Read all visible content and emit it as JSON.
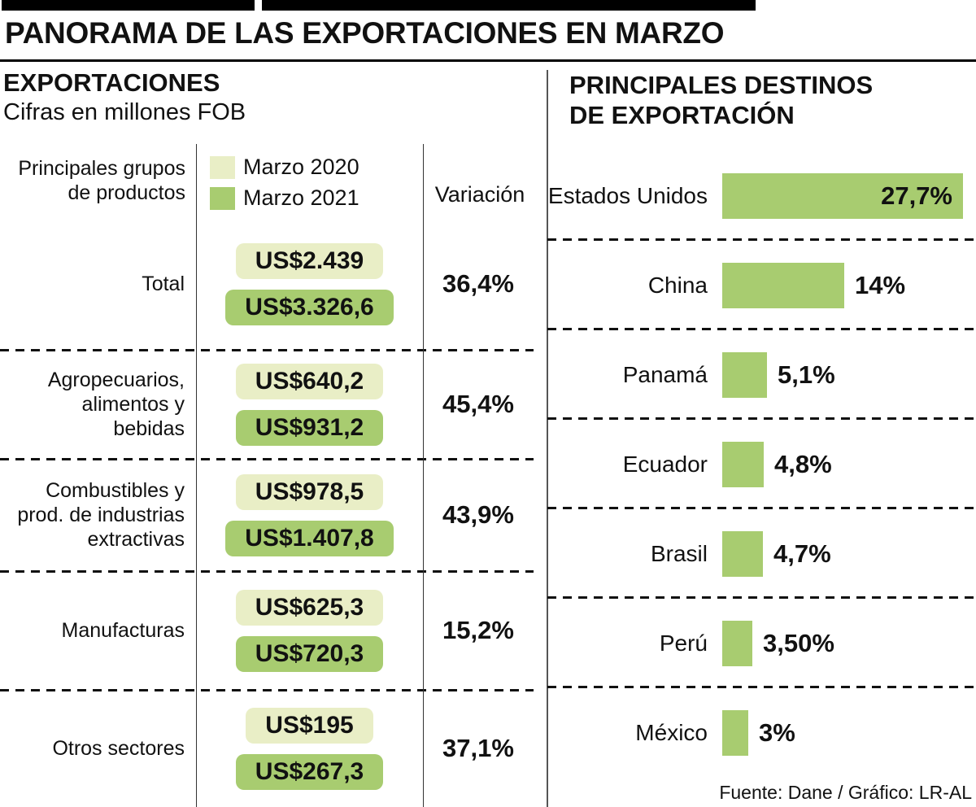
{
  "title": "PANORAMA DE LAS EXPORTACIONES EN MARZO",
  "colors": {
    "marzo_2020": "#e9eec6",
    "marzo_2021": "#a8cc70",
    "destination_bar": "#a8cc70"
  },
  "left": {
    "heading": "EXPORTACIONES",
    "subheading": "Cifras en millones FOB",
    "products_header": "Principales grupos\nde productos",
    "variation_header": "Variación",
    "legend": [
      {
        "label": "Marzo 2020"
      },
      {
        "label": "Marzo 2021"
      }
    ],
    "rows": [
      {
        "category": "Total",
        "marzo_2020": "US$2.439",
        "marzo_2021": "US$3.326,6",
        "variation": "36,4%"
      },
      {
        "category": "Agropecuarios,\nalimentos y\nbebidas",
        "marzo_2020": "US$640,2",
        "marzo_2021": "US$931,2",
        "variation": "45,4%"
      },
      {
        "category": "Combustibles y\nprod. de industrias\nextractivas",
        "marzo_2020": "US$978,5",
        "marzo_2021": "US$1.407,8",
        "variation": "43,9%"
      },
      {
        "category": "Manufacturas",
        "marzo_2020": "US$625,3",
        "marzo_2021": "US$720,3",
        "variation": "15,2%"
      },
      {
        "category": "Otros sectores",
        "marzo_2020": "US$195",
        "marzo_2021": "US$267,3",
        "variation": "37,1%"
      }
    ]
  },
  "right": {
    "heading": "PRINCIPALES DESTINOS\nDE EXPORTACIÓN",
    "bars": [
      {
        "label": "Estados Unidos",
        "value": 27.7,
        "display": "27,7%"
      },
      {
        "label": "China",
        "value": 14,
        "display": "14%"
      },
      {
        "label": "Panamá",
        "value": 5.1,
        "display": "5,1%"
      },
      {
        "label": "Ecuador",
        "value": 4.8,
        "display": "4,8%"
      },
      {
        "label": "Brasil",
        "value": 4.7,
        "display": "4,7%"
      },
      {
        "label": "Perú",
        "value": 3.5,
        "display": "3,50%"
      },
      {
        "label": "México",
        "value": 3,
        "display": "3%"
      }
    ]
  },
  "footer": "Fuente: Dane / Gráfico: LR-AL",
  "chart_data": [
    {
      "type": "bar",
      "title": "EXPORTACIONES (Cifras en millones FOB)",
      "categories": [
        "Total",
        "Agropecuarios, alimentos y bebidas",
        "Combustibles y prod. de industrias extractivas",
        "Manufacturas",
        "Otros sectores"
      ],
      "series": [
        {
          "name": "Marzo 2020",
          "values": [
            2439,
            640.2,
            978.5,
            625.3,
            195
          ]
        },
        {
          "name": "Marzo 2021",
          "values": [
            3326.6,
            931.2,
            1407.8,
            720.3,
            267.3
          ]
        }
      ],
      "annotations": {
        "variation": [
          "36,4%",
          "45,4%",
          "43,9%",
          "15,2%",
          "37,1%"
        ]
      },
      "legend_position": "top",
      "unit": "US$ millones FOB"
    },
    {
      "type": "bar",
      "orientation": "horizontal",
      "title": "PRINCIPALES DESTINOS DE EXPORTACIÓN",
      "categories": [
        "Estados Unidos",
        "China",
        "Panamá",
        "Ecuador",
        "Brasil",
        "Perú",
        "México"
      ],
      "values": [
        27.7,
        14,
        5.1,
        4.8,
        4.7,
        3.5,
        3
      ],
      "unit": "%",
      "xlim": [
        0,
        30
      ],
      "grid": false
    }
  ]
}
